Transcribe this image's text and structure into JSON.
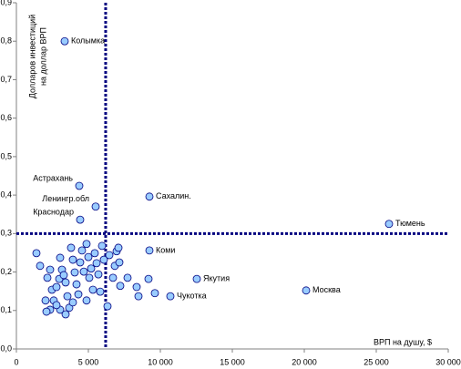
{
  "chart_data": {
    "type": "scatter",
    "y_label_lines": [
      "Долларов инвестиций",
      "на доллар ВРП"
    ],
    "x_label": "ВРП на душу, $",
    "xlim": [
      0,
      30000
    ],
    "xticks": [
      0,
      {
        "value": 5000,
        "label": "5 000"
      },
      {
        "value": 10000,
        "label": "10 000"
      },
      {
        "value": 15000,
        "label": "15 000"
      },
      {
        "value": 20000,
        "label": "20 000"
      },
      {
        "value": 25000,
        "label": "25 000"
      },
      {
        "value": 30000,
        "label": "30 000"
      }
    ],
    "ylim": [
      0,
      0.9
    ],
    "yticks": [
      {
        "value": 0,
        "label": "0,0"
      },
      {
        "value": 0.1,
        "label": "0,1"
      },
      {
        "value": 0.2,
        "label": "0,2"
      },
      {
        "value": 0.3,
        "label": "0,3"
      },
      {
        "value": 0.4,
        "label": "0,4"
      },
      {
        "value": 0.5,
        "label": "0,5"
      },
      {
        "value": 0.6,
        "label": "0,6"
      },
      {
        "value": 0.7,
        "label": "0,7"
      },
      {
        "value": 0.8,
        "label": "0,8"
      },
      {
        "value": 0.9,
        "label": "0,9"
      }
    ],
    "reference_lines": {
      "x": 6200,
      "y": 0.3
    },
    "color": "#99ccff",
    "edge_color": "#000080",
    "grid": false,
    "x": [
      3354,
      4367,
      9241,
      5506,
      4430,
      25886,
      9241,
      12532,
      20127,
      10696,
      1392,
      1646,
      2152,
      2342,
      2468,
      2595,
      2785,
      2975,
      3038,
      3165,
      3291,
      3418,
      3544,
      3671,
      3797,
      3924,
      4051,
      4177,
      4304,
      4430,
      4557,
      4683,
      4873,
      5000,
      5063,
      5190,
      5316,
      5443,
      5570,
      5696,
      5823,
      5949,
      6076,
      6329,
      6456,
      6709,
      6835,
      6962,
      7089,
      7152,
      7215,
      7722,
      8354,
      8481,
      9177,
      9620,
      2342,
      3038,
      2025,
      3418,
      2785,
      3924,
      4873,
      2089
    ],
    "values": [
      0.8,
      0.424,
      0.396,
      0.37,
      0.336,
      0.325,
      0.256,
      0.182,
      0.152,
      0.137,
      0.249,
      0.216,
      0.185,
      0.206,
      0.154,
      0.126,
      0.161,
      0.182,
      0.237,
      0.206,
      0.192,
      0.173,
      0.137,
      0.107,
      0.263,
      0.232,
      0.199,
      0.168,
      0.142,
      0.225,
      0.256,
      0.201,
      0.273,
      0.239,
      0.185,
      0.209,
      0.154,
      0.249,
      0.223,
      0.194,
      0.149,
      0.268,
      0.232,
      0.111,
      0.244,
      0.185,
      0.216,
      0.254,
      0.263,
      0.225,
      0.164,
      0.185,
      0.161,
      0.137,
      0.182,
      0.145,
      0.102,
      0.102,
      0.126,
      0.09,
      0.114,
      0.121,
      0.126,
      0.097
    ],
    "labels": [
      "Колымка",
      "Астрахань",
      "Сахалин.",
      "Ленингр.обл",
      "Краснодар",
      "Тюмень",
      "Коми",
      "Якутия",
      "Москва",
      "Чукотка",
      null,
      null,
      null,
      null,
      null,
      null,
      null,
      null,
      null,
      null,
      null,
      null,
      null,
      null,
      null,
      null,
      null,
      null,
      null,
      null,
      null,
      null,
      null,
      null,
      null,
      null,
      null,
      null,
      null,
      null,
      null,
      null,
      null,
      null,
      null,
      null,
      null,
      null,
      null,
      null,
      null,
      null,
      null,
      null,
      null,
      null,
      null,
      null,
      null,
      null,
      null,
      null,
      null,
      null
    ]
  }
}
